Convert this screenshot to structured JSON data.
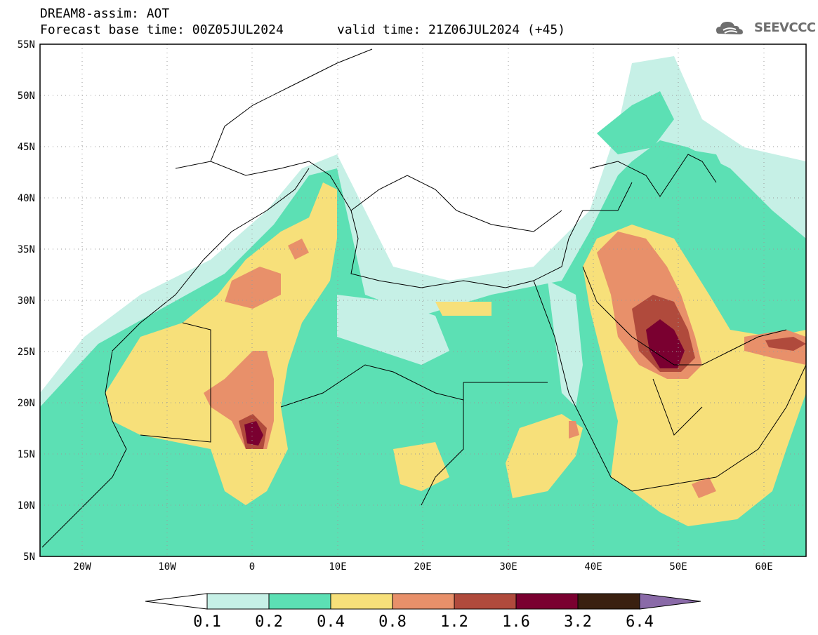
{
  "header": {
    "title": "DREAM8-assim: AOT",
    "base_time": "Forecast base time: 00Z05JUL2024",
    "valid_time": "valid time: 21Z06JUL2024 (+45)"
  },
  "logo": {
    "text": "SEEVCCC",
    "icon": "cloud-icon"
  },
  "map": {
    "lon_range": [
      -25,
      65
    ],
    "lat_range": [
      5,
      55
    ],
    "lat_ticks": [
      "55N",
      "50N",
      "45N",
      "40N",
      "35N",
      "30N",
      "25N",
      "20N",
      "15N",
      "10N",
      "5N"
    ],
    "lon_ticks": [
      "20W",
      "10W",
      "0",
      "10E",
      "20E",
      "30E",
      "40E",
      "50E",
      "60E"
    ],
    "grid": "dotted"
  },
  "colorbar": {
    "labels": [
      "0.1",
      "0.2",
      "0.4",
      "0.8",
      "1.2",
      "1.6",
      "3.2",
      "6.4"
    ],
    "colors": [
      "#ffffff",
      "#c6f0e6",
      "#5ce0b4",
      "#f7e07a",
      "#e8906a",
      "#b04a3c",
      "#7a0030",
      "#3a2010",
      "#8a6aa8"
    ]
  }
}
